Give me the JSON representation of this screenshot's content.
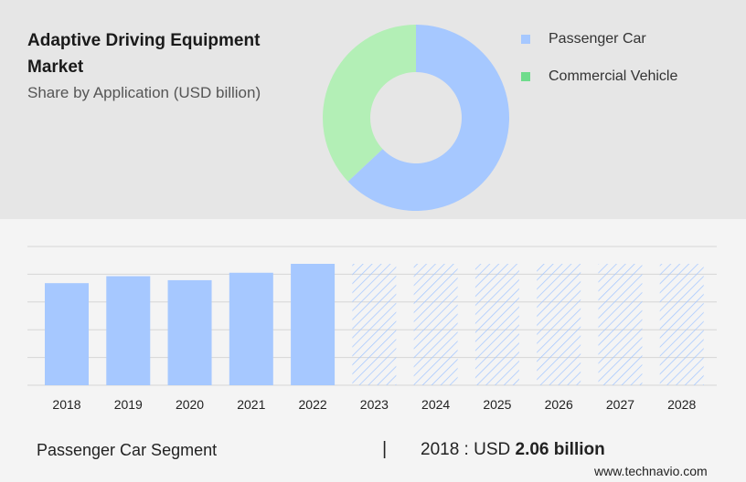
{
  "header": {
    "title": "Adaptive Driving Equipment Market",
    "subtitle": "Share by Application (USD billion)"
  },
  "colors": {
    "passenger": "#a6c8ff",
    "commercial": "#b3efb6",
    "commercial_legend": "#6fdc8c",
    "grid": "#d6d6d6",
    "hatch": "#a6c8ff"
  },
  "chart_data": [
    {
      "type": "pie",
      "subtype": "donut",
      "categories": [
        "Passenger Car",
        "Commercial Vehicle"
      ],
      "values": [
        63,
        37
      ],
      "legend_position": "right"
    },
    {
      "type": "bar",
      "categories": [
        "2018",
        "2019",
        "2020",
        "2021",
        "2022",
        "2023",
        "2024",
        "2025",
        "2026",
        "2027",
        "2028"
      ],
      "values": [
        2.06,
        2.2,
        2.12,
        2.27,
        2.45,
        2.45,
        2.45,
        2.45,
        2.45,
        2.45,
        2.45
      ],
      "forecast_from_index": 5,
      "series_name": "Passenger Car",
      "ylim": [
        0,
        2.8
      ],
      "grid": true,
      "y_tick_labels_shown": false
    }
  ],
  "footer": {
    "segment": "Passenger Car Segment",
    "separator": "|",
    "year_prefix": "2018 : USD",
    "value_text": "2.06 billion",
    "watermark": "www.technavio.com"
  }
}
